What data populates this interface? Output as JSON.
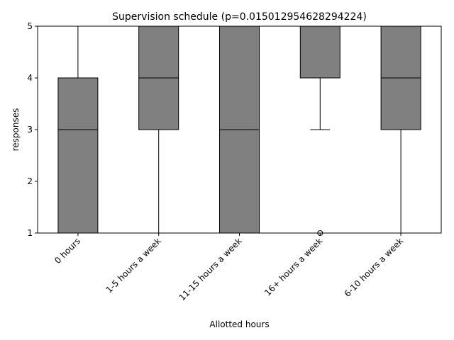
{
  "chart_data": {
    "type": "box",
    "title": "Supervision schedule (p=0.015012954628294224)",
    "xlabel": "Allotted hours",
    "ylabel": "responses",
    "ylim": [
      1,
      5
    ],
    "yticks": [
      1,
      2,
      3,
      4,
      5
    ],
    "grid": false,
    "box_color": "#808080",
    "edge_color": "#000000",
    "categories": [
      "0 hours",
      "1-5 hours a week",
      "11-15 hours a week",
      "16+ hours a week",
      "6-10 hours a week"
    ],
    "boxes": [
      {
        "whisker_low": 1,
        "q1": 1,
        "median": 3,
        "q3": 4,
        "whisker_high": 5,
        "outliers": []
      },
      {
        "whisker_low": 1,
        "q1": 3,
        "median": 4,
        "q3": 5,
        "whisker_high": 5,
        "outliers": []
      },
      {
        "whisker_low": 1,
        "q1": 1,
        "median": 3,
        "q3": 5,
        "whisker_high": 5,
        "outliers": []
      },
      {
        "whisker_low": 3,
        "q1": 4,
        "median": 4,
        "q3": 5,
        "whisker_high": 5,
        "outliers": [
          1
        ]
      },
      {
        "whisker_low": 1,
        "q1": 3,
        "median": 4,
        "q3": 5,
        "whisker_high": 5,
        "outliers": []
      }
    ]
  }
}
